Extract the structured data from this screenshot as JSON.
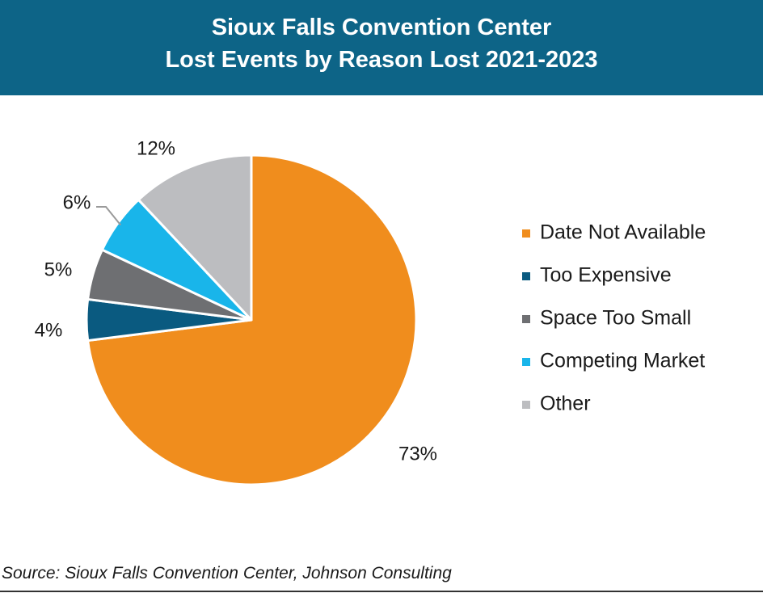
{
  "header": {
    "title_line1": "Sioux Falls Convention Center",
    "title_line2": "Lost Events by Reason Lost 2021-2023",
    "background_color": "#0d6487"
  },
  "source": "Source: Sioux Falls Convention Center, Johnson Consulting",
  "chart_data": {
    "type": "pie",
    "title": "Sioux Falls Convention Center Lost Events by Reason Lost 2021-2023",
    "legend_position": "right",
    "slices": [
      {
        "name": "Date Not Available",
        "value": 73,
        "label": "73%",
        "color": "#f08d1d"
      },
      {
        "name": "Too Expensive",
        "value": 4,
        "label": "4%",
        "color": "#0a5a80"
      },
      {
        "name": "Space Too Small",
        "value": 5,
        "label": "5%",
        "color": "#6e6f72"
      },
      {
        "name": "Competing Market",
        "value": 6,
        "label": "6%",
        "color": "#19b5ea"
      },
      {
        "name": "Other",
        "value": 12,
        "label": "12%",
        "color": "#bcbdc0"
      }
    ]
  }
}
